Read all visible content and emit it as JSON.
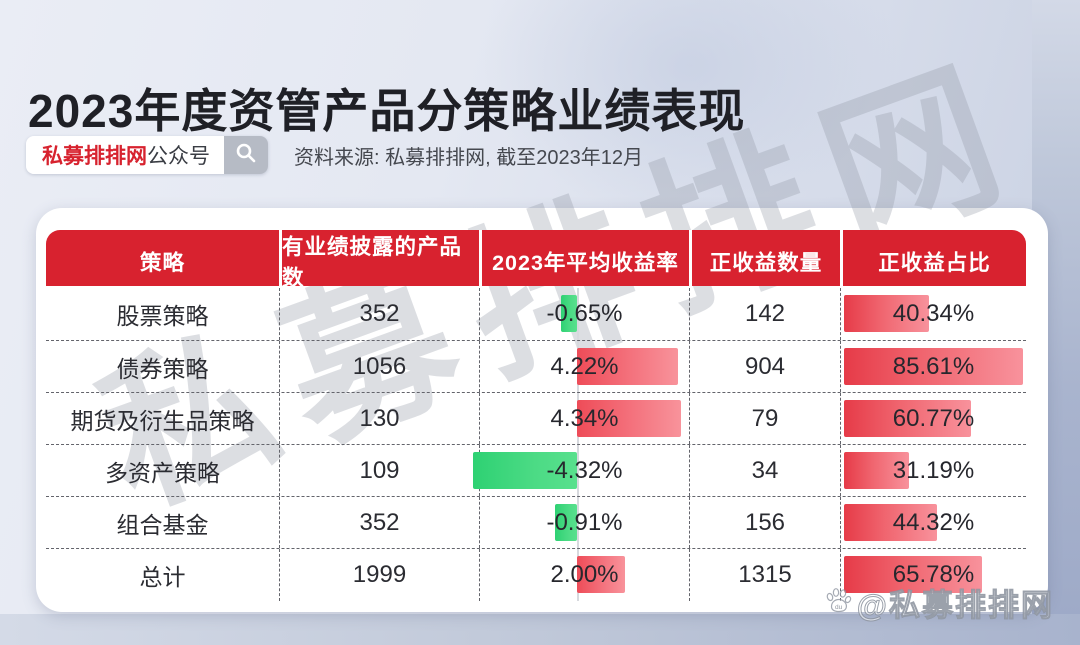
{
  "title": "2023年度资管产品分策略业绩表现",
  "badge": {
    "brand": "私募排排网",
    "suffix": "公众号",
    "search_icon": "magnifier-icon"
  },
  "source_line": "资料来源: 私募排排网, 截至2023年12月",
  "watermarks": {
    "diagonal": "私募排排网",
    "corner": "@私募排排网",
    "corner_icon": "baidu-paw-icon"
  },
  "colors": {
    "header_red": "#d8222f",
    "brand_red": "#d7222e",
    "positive_bar": "#ee4c58",
    "negative_bar": "#2ed173",
    "ratio_bar": "#e63b48",
    "page_bg": "#e4e8f2"
  },
  "chart_data": {
    "type": "table",
    "title": "2023年度资管产品分策略业绩表现",
    "columns": [
      "策略",
      "有业绩披露的产品数",
      "2023年平均收益率",
      "正收益数量",
      "正收益占比"
    ],
    "rows": [
      {
        "strategy": "股票策略",
        "products": "352",
        "avg_return": -0.65,
        "avg_return_label": "-0.65%",
        "positive_count": "142",
        "positive_ratio": 40.34,
        "positive_ratio_label": "40.34%"
      },
      {
        "strategy": "债券策略",
        "products": "1056",
        "avg_return": 4.22,
        "avg_return_label": "4.22%",
        "positive_count": "904",
        "positive_ratio": 85.61,
        "positive_ratio_label": "85.61%"
      },
      {
        "strategy": "期货及衍生品策略",
        "products": "130",
        "avg_return": 4.34,
        "avg_return_label": "4.34%",
        "positive_count": "79",
        "positive_ratio": 60.77,
        "positive_ratio_label": "60.77%"
      },
      {
        "strategy": "多资产策略",
        "products": "109",
        "avg_return": -4.32,
        "avg_return_label": "-4.32%",
        "positive_count": "34",
        "positive_ratio": 31.19,
        "positive_ratio_label": "31.19%"
      },
      {
        "strategy": "组合基金",
        "products": "352",
        "avg_return": -0.91,
        "avg_return_label": "-0.91%",
        "positive_count": "156",
        "positive_ratio": 44.32,
        "positive_ratio_label": "44.32%"
      },
      {
        "strategy": "总计",
        "products": "1999",
        "avg_return": 2.0,
        "avg_return_label": "2.00%",
        "positive_count": "1315",
        "positive_ratio": 65.78,
        "positive_ratio_label": "65.78%"
      }
    ],
    "layout_hints": {
      "return_bar_axis_max": 4.34,
      "ratio_bar_axis_max": 85.61,
      "negative_color_meaning": "negative average return (green)",
      "positive_color_meaning": "positive average return (red)"
    }
  }
}
